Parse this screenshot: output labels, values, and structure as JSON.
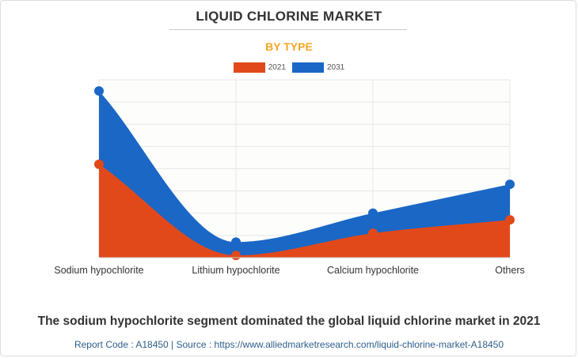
{
  "header": {
    "title": "LIQUID CHLORINE MARKET",
    "subtitle": "BY TYPE"
  },
  "colors": {
    "series_2021": "#e2491a",
    "series_2031": "#1a67c6",
    "subtitle": "#f5a623",
    "grid": "#e6e6e6"
  },
  "chart_data": {
    "type": "area",
    "categories": [
      "Sodium hypochlorite",
      "Lithium hypochlorite",
      "Calcium hypochlorite",
      "Others"
    ],
    "series": [
      {
        "name": "2021",
        "values": [
          42,
          1,
          11,
          17
        ]
      },
      {
        "name": "2031",
        "values": [
          75,
          7,
          20,
          33
        ]
      }
    ],
    "ylim": [
      0,
      80
    ],
    "grid": true,
    "legend": "top-center",
    "xlabel": "",
    "ylabel": ""
  },
  "footer": {
    "headline": "The sodium hypochlorite segment dominated the global liquid chlorine market in 2021",
    "source": "Report Code : A18450  |  Source : https://www.alliedmarketresearch.com/liquid-chlorine-market-A18450"
  }
}
